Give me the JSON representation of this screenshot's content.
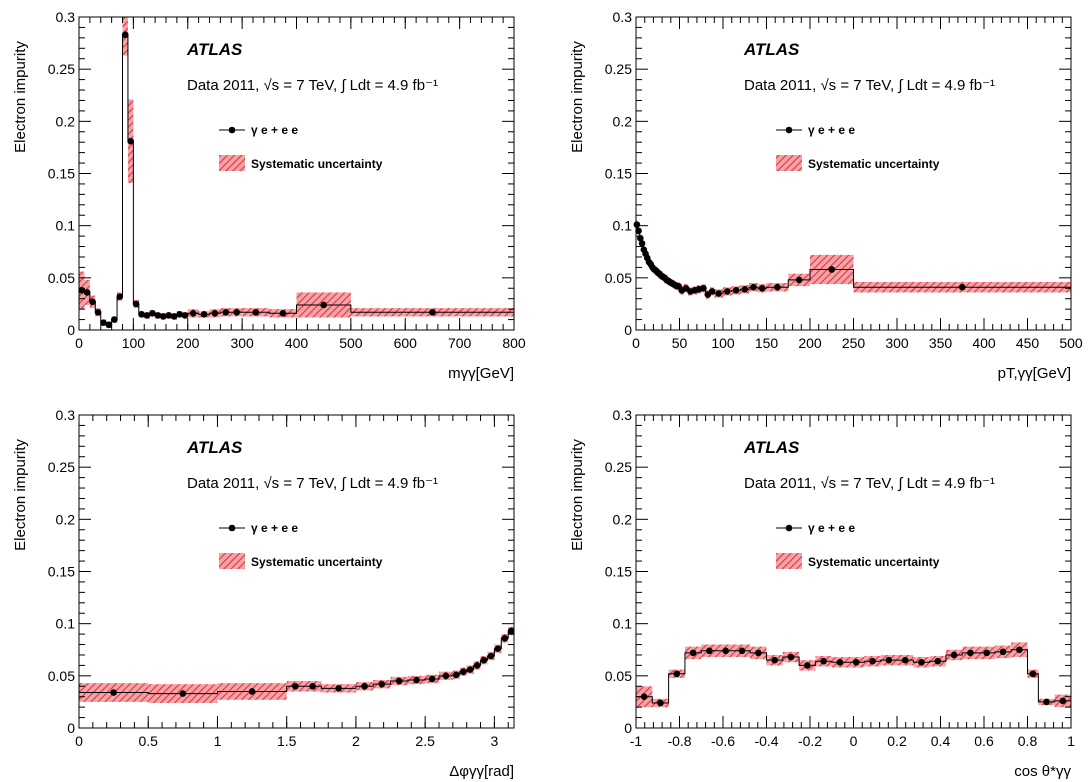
{
  "style": {
    "band_color": "#e8303a",
    "band_fill": "#f2a5a9",
    "point_color": "#000000"
  },
  "panels": [
    {
      "atlas_label": "ATLAS",
      "lumi_label": "Data 2011, √s = 7 TeV, ∫ Ldt = 4.9 fb⁻¹",
      "legend_point_label": "γ e + e e",
      "legend_band_label": "Systematic uncertainty"
    },
    {
      "atlas_label": "ATLAS",
      "lumi_label": "Data 2011, √s = 7 TeV, ∫ Ldt = 4.9 fb⁻¹",
      "legend_point_label": "γ e + e e",
      "legend_band_label": "Systematic uncertainty"
    },
    {
      "atlas_label": "ATLAS",
      "lumi_label": "Data 2011, √s = 7 TeV, ∫ Ldt = 4.9 fb⁻¹",
      "legend_point_label": "γ e + e e",
      "legend_band_label": "Systematic uncertainty"
    },
    {
      "atlas_label": "ATLAS",
      "lumi_label": "Data 2011, √s = 7 TeV, ∫ Ldt = 4.9 fb⁻¹",
      "legend_point_label": "γ e + e e",
      "legend_band_label": "Systematic uncertainty"
    }
  ],
  "chart_data": [
    {
      "type": "step",
      "ylabel": "Electron impurity",
      "xlabel": "mγγ[GeV]",
      "xlim": [
        0,
        800
      ],
      "ylim": [
        0,
        0.3
      ],
      "xticks": [
        0,
        100,
        200,
        300,
        400,
        500,
        600,
        700,
        800
      ],
      "yticks": [
        0,
        0.05,
        0.1,
        0.15,
        0.2,
        0.25,
        0.3
      ],
      "series": [
        {
          "name": "γ e + e e",
          "edges": [
            0,
            10,
            20,
            30,
            40,
            50,
            60,
            70,
            80,
            90,
            100,
            110,
            120,
            130,
            140,
            150,
            160,
            170,
            180,
            190,
            200,
            220,
            240,
            260,
            280,
            300,
            350,
            400,
            500,
            800
          ],
          "values": [
            0.038,
            0.036,
            0.027,
            0.017,
            0.007,
            0.005,
            0.01,
            0.032,
            0.283,
            0.181,
            0.025,
            0.015,
            0.014,
            0.016,
            0.014,
            0.013,
            0.014,
            0.013,
            0.015,
            0.014,
            0.016,
            0.015,
            0.016,
            0.017,
            0.017,
            0.017,
            0.016,
            0.024,
            0.017
          ],
          "band": [
            0.018,
            0.012,
            0.006,
            0.004,
            0.003,
            0.003,
            0.003,
            0.004,
            0.02,
            0.04,
            0.004,
            0.003,
            0.003,
            0.003,
            0.003,
            0.003,
            0.003,
            0.003,
            0.003,
            0.003,
            0.004,
            0.003,
            0.004,
            0.004,
            0.004,
            0.004,
            0.004,
            0.012,
            0.004
          ]
        }
      ]
    },
    {
      "type": "step",
      "ylabel": "Electron impurity",
      "xlabel": "pT,γγ[GeV]",
      "xlim": [
        0,
        500
      ],
      "ylim": [
        0,
        0.3
      ],
      "xticks": [
        0,
        50,
        100,
        150,
        200,
        250,
        300,
        350,
        400,
        450,
        500
      ],
      "yticks": [
        0,
        0.05,
        0.1,
        0.15,
        0.2,
        0.25,
        0.3
      ],
      "series": [
        {
          "name": "γ e + e e",
          "edges": [
            0,
            2,
            4,
            6,
            8,
            10,
            12,
            14,
            16,
            18,
            20,
            22,
            24,
            26,
            28,
            30,
            32,
            34,
            36,
            38,
            40,
            42,
            44,
            46,
            48,
            50,
            55,
            60,
            65,
            70,
            75,
            80,
            85,
            90,
            100,
            110,
            120,
            130,
            140,
            150,
            175,
            200,
            250,
            500
          ],
          "values": [
            0.101,
            0.095,
            0.088,
            0.083,
            0.077,
            0.073,
            0.069,
            0.065,
            0.063,
            0.06,
            0.058,
            0.057,
            0.055,
            0.054,
            0.052,
            0.051,
            0.05,
            0.048,
            0.047,
            0.046,
            0.045,
            0.044,
            0.043,
            0.042,
            0.042,
            0.038,
            0.04,
            0.037,
            0.038,
            0.039,
            0.04,
            0.034,
            0.037,
            0.035,
            0.037,
            0.038,
            0.039,
            0.041,
            0.04,
            0.041,
            0.048,
            0.058,
            0.041
          ],
          "band": [
            0.004,
            0.004,
            0.004,
            0.004,
            0.004,
            0.004,
            0.004,
            0.004,
            0.004,
            0.004,
            0.004,
            0.004,
            0.004,
            0.004,
            0.004,
            0.004,
            0.004,
            0.004,
            0.004,
            0.004,
            0.004,
            0.004,
            0.004,
            0.004,
            0.004,
            0.004,
            0.004,
            0.004,
            0.004,
            0.004,
            0.004,
            0.004,
            0.004,
            0.004,
            0.004,
            0.004,
            0.004,
            0.004,
            0.004,
            0.004,
            0.006,
            0.014,
            0.005
          ]
        }
      ]
    },
    {
      "type": "step",
      "ylabel": "Electron impurity",
      "xlabel": "Δφγγ[rad]",
      "xlim": [
        0,
        3.1416
      ],
      "ylim": [
        0,
        0.3
      ],
      "xticks": [
        0,
        0.5,
        1,
        1.5,
        2,
        2.5,
        3
      ],
      "yticks": [
        0,
        0.05,
        0.1,
        0.15,
        0.2,
        0.25,
        0.3
      ],
      "series": [
        {
          "name": "γ e + e e",
          "edges": [
            0,
            0.5,
            1.0,
            1.5,
            1.625,
            1.75,
            2.0,
            2.125,
            2.25,
            2.375,
            2.5,
            2.6,
            2.7,
            2.75,
            2.8,
            2.85,
            2.9,
            2.95,
            3.0,
            3.05,
            3.1,
            3.1416
          ],
          "values": [
            0.034,
            0.033,
            0.035,
            0.04,
            0.04,
            0.038,
            0.04,
            0.042,
            0.045,
            0.046,
            0.047,
            0.05,
            0.051,
            0.054,
            0.056,
            0.06,
            0.065,
            0.069,
            0.076,
            0.086,
            0.093
          ],
          "band": [
            0.009,
            0.009,
            0.008,
            0.005,
            0.005,
            0.004,
            0.004,
            0.004,
            0.004,
            0.004,
            0.004,
            0.004,
            0.004,
            0.004,
            0.004,
            0.004,
            0.004,
            0.004,
            0.004,
            0.004,
            0.004
          ]
        }
      ]
    },
    {
      "type": "step",
      "ylabel": "Electron impurity",
      "xlabel": "cos θ*γγ",
      "xlim": [
        -1,
        1
      ],
      "ylim": [
        0,
        0.3
      ],
      "xticks": [
        -1,
        -0.8,
        -0.6,
        -0.4,
        -0.2,
        0,
        0.2,
        0.4,
        0.6,
        0.8,
        1
      ],
      "yticks": [
        0,
        0.05,
        0.1,
        0.15,
        0.2,
        0.25,
        0.3
      ],
      "series": [
        {
          "name": "γ e + e e",
          "edges": [
            -1,
            -0.925,
            -0.85,
            -0.775,
            -0.7,
            -0.625,
            -0.55,
            -0.475,
            -0.4,
            -0.325,
            -0.25,
            -0.175,
            -0.1,
            -0.025,
            0.05,
            0.125,
            0.2,
            0.275,
            0.35,
            0.425,
            0.5,
            0.575,
            0.65,
            0.725,
            0.8,
            0.85,
            0.925,
            1
          ],
          "values": [
            0.03,
            0.024,
            0.052,
            0.072,
            0.074,
            0.074,
            0.074,
            0.072,
            0.065,
            0.068,
            0.06,
            0.064,
            0.063,
            0.063,
            0.064,
            0.065,
            0.065,
            0.063,
            0.064,
            0.07,
            0.072,
            0.072,
            0.073,
            0.075,
            0.052,
            0.025,
            0.026
          ],
          "band": [
            0.01,
            0.004,
            0.004,
            0.006,
            0.006,
            0.006,
            0.006,
            0.006,
            0.005,
            0.005,
            0.005,
            0.005,
            0.005,
            0.005,
            0.005,
            0.005,
            0.005,
            0.005,
            0.005,
            0.005,
            0.006,
            0.006,
            0.006,
            0.007,
            0.004,
            0.003,
            0.006
          ]
        }
      ]
    }
  ]
}
